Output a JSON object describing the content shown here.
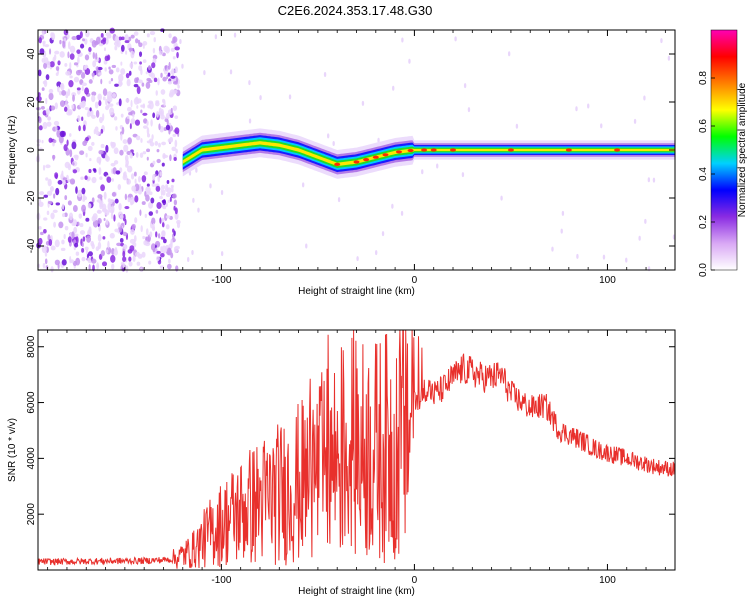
{
  "title": "C2E6.2024.353.17.48.G30",
  "chart_data": [
    {
      "type": "heatmap",
      "xlabel": "Height of straight line (km)",
      "ylabel": "Frequency (Hz)",
      "xlim": [
        -195,
        135
      ],
      "ylim": [
        -50,
        50
      ],
      "xticks": [
        -100,
        0,
        100
      ],
      "yticks": [
        -40,
        -20,
        0,
        20,
        40
      ],
      "colorbar": {
        "label": "Normalized spectral amplitude",
        "range": [
          0,
          1
        ],
        "ticks": [
          0.0,
          0.2,
          0.4,
          0.6,
          0.8
        ],
        "colors": [
          "#ffffff",
          "#d9a8f5",
          "#8a2be2",
          "#0000ff",
          "#00d0ff",
          "#00ff00",
          "#ffff00",
          "#ff7f00",
          "#ff0000",
          "#ff00b4"
        ]
      },
      "ridge": {
        "x": [
          -120,
          -110,
          -100,
          -90,
          -80,
          -70,
          -60,
          -50,
          -40,
          -30,
          -20,
          -10,
          0,
          10,
          20,
          40,
          60,
          80,
          100,
          120,
          135
        ],
        "freq": [
          -5,
          0,
          1,
          2,
          3,
          2,
          0,
          -3,
          -6,
          -5,
          -3,
          -1,
          0,
          0,
          0,
          0,
          0,
          0,
          0,
          0,
          0
        ]
      },
      "noise_region_x": [
        -195,
        -122
      ]
    },
    {
      "type": "line",
      "xlabel": "Height of straight line (km)",
      "ylabel": "SNR (10 * v/v)",
      "xlim": [
        -195,
        135
      ],
      "ylim": [
        0,
        8600
      ],
      "xticks": [
        -100,
        0,
        100
      ],
      "yticks": [
        2000,
        4000,
        6000,
        8000
      ],
      "color": "#e8302c",
      "series": [
        {
          "x": [
            -195,
            -180,
            -160,
            -140,
            -125,
            -115,
            -105,
            -95,
            -85,
            -75,
            -65,
            -55,
            -45,
            -38,
            -30,
            -20,
            -10,
            -5,
            0,
            3,
            6,
            10,
            15,
            20,
            25,
            30,
            35,
            40,
            45,
            50,
            60,
            68,
            75,
            85,
            95,
            105,
            115,
            125,
            135
          ],
          "y": [
            300,
            300,
            320,
            330,
            380,
            700,
            1400,
            1900,
            2300,
            2600,
            2900,
            3300,
            3800,
            4200,
            4300,
            4300,
            4500,
            5000,
            6300,
            6000,
            6600,
            6300,
            6500,
            6900,
            7200,
            7100,
            6900,
            6900,
            7000,
            6300,
            5800,
            5900,
            5000,
            4700,
            4300,
            4100,
            3900,
            3700,
            3600
          ]
        }
      ]
    }
  ]
}
